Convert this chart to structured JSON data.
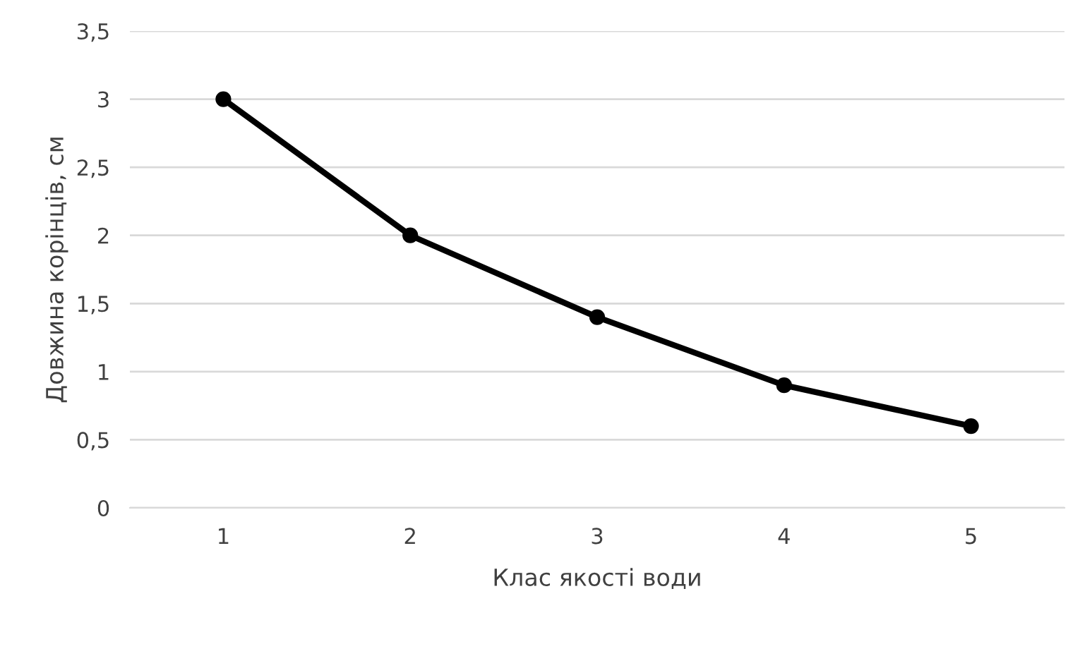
{
  "chart_data": {
    "type": "line",
    "xlabel": "Клас якості води",
    "ylabel": "Довжина корінців, см",
    "categories": [
      "1",
      "2",
      "3",
      "4",
      "5"
    ],
    "series": [
      {
        "color": "#000000",
        "values": [
          3,
          2,
          1.4,
          0.9,
          0.6
        ]
      }
    ],
    "ylim": [
      0,
      3.5
    ],
    "yticks": [
      0,
      {
        "value": 0.5,
        "label": "0,5"
      },
      1,
      {
        "value": 1.5,
        "label": "1,5"
      },
      2,
      {
        "value": 2.5,
        "label": "2,5"
      },
      3,
      {
        "value": 3.5,
        "label": "3,5"
      }
    ],
    "grid": "y",
    "marker": "circle",
    "line_style": "solid",
    "legend": false
  }
}
